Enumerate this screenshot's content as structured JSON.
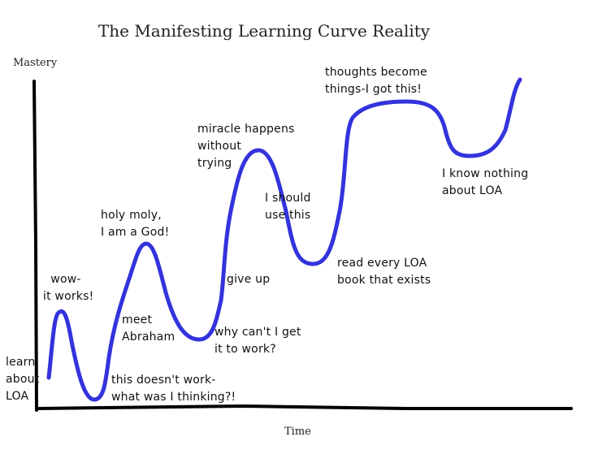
{
  "title": "The Manifesting Learning Curve Reality",
  "y_axis_label": "Mastery",
  "x_axis_label": "Time",
  "curve_color": "#3333dd",
  "annotations": [
    {
      "id": "learn",
      "text": "learn\nabout\nLOA"
    },
    {
      "id": "wow",
      "text": "  wow-\nit works!"
    },
    {
      "id": "doesnt",
      "text": "this doesn't work-\nwhat was I thinking?!"
    },
    {
      "id": "abraham",
      "text": "meet\nAbraham"
    },
    {
      "id": "god",
      "text": "holy moly,\nI am a God!"
    },
    {
      "id": "whycant",
      "text": "why can't I get\nit to work?"
    },
    {
      "id": "giveup",
      "text": "give up"
    },
    {
      "id": "miracle",
      "text": "miracle happens\nwithout\ntrying"
    },
    {
      "id": "should",
      "text": "I should\nuse this"
    },
    {
      "id": "read",
      "text": "read every LOA\nbook that exists"
    },
    {
      "id": "thoughts",
      "text": "thoughts become\nthings-I got this!"
    },
    {
      "id": "nothing",
      "text": "I know nothing\nabout LOA"
    }
  ]
}
